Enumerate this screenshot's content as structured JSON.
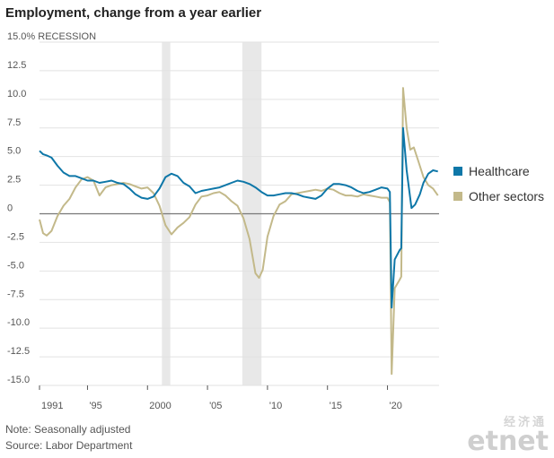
{
  "chart_data": {
    "type": "line",
    "title": "Employment, change from a year earlier",
    "y_unit_label": "%",
    "recession_label": "RECESSION",
    "ylim": [
      -15,
      15
    ],
    "y_ticks": [
      15,
      12.5,
      10,
      7.5,
      5,
      2.5,
      0,
      -2.5,
      -5,
      -7.5,
      -10,
      -12.5,
      -15
    ],
    "y_tick_labels": [
      "15.0",
      "12.5",
      "10.0",
      "7.5",
      "5.0",
      "2.5",
      "0",
      "-2.5",
      "-5.0",
      "-7.5",
      "-10.0",
      "-12.5",
      "-15.0"
    ],
    "xlim": [
      1991,
      2024.3
    ],
    "x_ticks": [
      1991,
      1995,
      2000,
      2005,
      2010,
      2015,
      2020
    ],
    "x_tick_labels": [
      "1991",
      "'95",
      "2000",
      "'05",
      "'10",
      "'15",
      "'20"
    ],
    "grid": "horizontal",
    "legend_position": "right",
    "recessions": [
      [
        2001.2,
        2001.9
      ],
      [
        2007.9,
        2009.5
      ]
    ],
    "series": [
      {
        "name": "Healthcare",
        "color": "#0e77a8",
        "points": [
          [
            1991,
            5.5
          ],
          [
            1991.3,
            5.2
          ],
          [
            1991.6,
            5.1
          ],
          [
            1992,
            4.9
          ],
          [
            1992.5,
            4.2
          ],
          [
            1993,
            3.6
          ],
          [
            1993.5,
            3.3
          ],
          [
            1994,
            3.3
          ],
          [
            1994.5,
            3.1
          ],
          [
            1995,
            2.9
          ],
          [
            1995.5,
            2.9
          ],
          [
            1996,
            2.7
          ],
          [
            1996.5,
            2.8
          ],
          [
            1997,
            2.9
          ],
          [
            1997.5,
            2.7
          ],
          [
            1998,
            2.6
          ],
          [
            1998.5,
            2.2
          ],
          [
            1999,
            1.7
          ],
          [
            1999.5,
            1.4
          ],
          [
            2000,
            1.3
          ],
          [
            2000.5,
            1.5
          ],
          [
            2001,
            2.2
          ],
          [
            2001.5,
            3.2
          ],
          [
            2002,
            3.5
          ],
          [
            2002.5,
            3.3
          ],
          [
            2003,
            2.7
          ],
          [
            2003.5,
            2.4
          ],
          [
            2004,
            1.8
          ],
          [
            2004.5,
            2.0
          ],
          [
            2005,
            2.1
          ],
          [
            2005.5,
            2.2
          ],
          [
            2006,
            2.3
          ],
          [
            2006.5,
            2.5
          ],
          [
            2007,
            2.7
          ],
          [
            2007.5,
            2.9
          ],
          [
            2008,
            2.8
          ],
          [
            2008.5,
            2.6
          ],
          [
            2009,
            2.3
          ],
          [
            2009.5,
            1.9
          ],
          [
            2010,
            1.6
          ],
          [
            2010.5,
            1.6
          ],
          [
            2011,
            1.7
          ],
          [
            2011.5,
            1.8
          ],
          [
            2012,
            1.8
          ],
          [
            2012.5,
            1.7
          ],
          [
            2013,
            1.5
          ],
          [
            2013.5,
            1.4
          ],
          [
            2014,
            1.3
          ],
          [
            2014.5,
            1.6
          ],
          [
            2015,
            2.2
          ],
          [
            2015.5,
            2.6
          ],
          [
            2016,
            2.6
          ],
          [
            2016.5,
            2.5
          ],
          [
            2017,
            2.3
          ],
          [
            2017.5,
            2.0
          ],
          [
            2018,
            1.8
          ],
          [
            2018.5,
            1.9
          ],
          [
            2019,
            2.1
          ],
          [
            2019.5,
            2.3
          ],
          [
            2020,
            2.2
          ],
          [
            2020.2,
            1.9
          ],
          [
            2020.35,
            -8.2
          ],
          [
            2020.6,
            -4
          ],
          [
            2021,
            -3.2
          ],
          [
            2021.15,
            -3.0
          ],
          [
            2021.3,
            7.5
          ],
          [
            2021.6,
            3.8
          ],
          [
            2022,
            0.5
          ],
          [
            2022.3,
            0.8
          ],
          [
            2022.7,
            1.7
          ],
          [
            2023,
            2.7
          ],
          [
            2023.4,
            3.5
          ],
          [
            2023.8,
            3.8
          ],
          [
            2024.2,
            3.7
          ]
        ]
      },
      {
        "name": "Other sectors",
        "color": "#c3b98a",
        "points": [
          [
            1991,
            -0.5
          ],
          [
            1991.3,
            -1.7
          ],
          [
            1991.6,
            -1.9
          ],
          [
            1992,
            -1.5
          ],
          [
            1992.5,
            -0.2
          ],
          [
            1993,
            0.7
          ],
          [
            1993.5,
            1.3
          ],
          [
            1994,
            2.3
          ],
          [
            1994.5,
            3.0
          ],
          [
            1995,
            3.2
          ],
          [
            1995.5,
            2.9
          ],
          [
            1996,
            1.6
          ],
          [
            1996.5,
            2.3
          ],
          [
            1997,
            2.5
          ],
          [
            1997.5,
            2.6
          ],
          [
            1998,
            2.7
          ],
          [
            1998.5,
            2.6
          ],
          [
            1999,
            2.4
          ],
          [
            1999.5,
            2.2
          ],
          [
            2000,
            2.3
          ],
          [
            2000.5,
            1.8
          ],
          [
            2001,
            0.7
          ],
          [
            2001.5,
            -1.0
          ],
          [
            2002,
            -1.8
          ],
          [
            2002.5,
            -1.2
          ],
          [
            2003,
            -0.8
          ],
          [
            2003.5,
            -0.3
          ],
          [
            2004,
            0.8
          ],
          [
            2004.5,
            1.5
          ],
          [
            2005,
            1.6
          ],
          [
            2005.5,
            1.8
          ],
          [
            2006,
            1.9
          ],
          [
            2006.5,
            1.6
          ],
          [
            2007,
            1.1
          ],
          [
            2007.5,
            0.7
          ],
          [
            2008,
            -0.4
          ],
          [
            2008.5,
            -2.2
          ],
          [
            2009,
            -5.2
          ],
          [
            2009.3,
            -5.6
          ],
          [
            2009.6,
            -4.9
          ],
          [
            2010,
            -2.0
          ],
          [
            2010.5,
            -0.2
          ],
          [
            2011,
            0.8
          ],
          [
            2011.5,
            1.1
          ],
          [
            2012,
            1.7
          ],
          [
            2012.5,
            1.8
          ],
          [
            2013,
            1.9
          ],
          [
            2013.5,
            2.0
          ],
          [
            2014,
            2.1
          ],
          [
            2014.5,
            2.0
          ],
          [
            2015,
            2.2
          ],
          [
            2015.5,
            2.1
          ],
          [
            2016,
            1.8
          ],
          [
            2016.5,
            1.6
          ],
          [
            2017,
            1.6
          ],
          [
            2017.5,
            1.5
          ],
          [
            2018,
            1.7
          ],
          [
            2018.5,
            1.6
          ],
          [
            2019,
            1.5
          ],
          [
            2019.5,
            1.4
          ],
          [
            2020,
            1.4
          ],
          [
            2020.2,
            1.0
          ],
          [
            2020.35,
            -14.0
          ],
          [
            2020.6,
            -6.5
          ],
          [
            2021,
            -5.8
          ],
          [
            2021.15,
            -5.5
          ],
          [
            2021.3,
            11.0
          ],
          [
            2021.6,
            7.5
          ],
          [
            2021.9,
            5.6
          ],
          [
            2022.2,
            5.8
          ],
          [
            2022.6,
            4.5
          ],
          [
            2023,
            3.2
          ],
          [
            2023.4,
            2.5
          ],
          [
            2023.8,
            2.2
          ],
          [
            2024.2,
            1.6
          ]
        ]
      }
    ]
  },
  "notes": {
    "note": "Note: Seasonally adjusted",
    "source": "Source: Labor Department"
  },
  "watermark": {
    "chinese": "经济通",
    "logo": "etnet"
  }
}
